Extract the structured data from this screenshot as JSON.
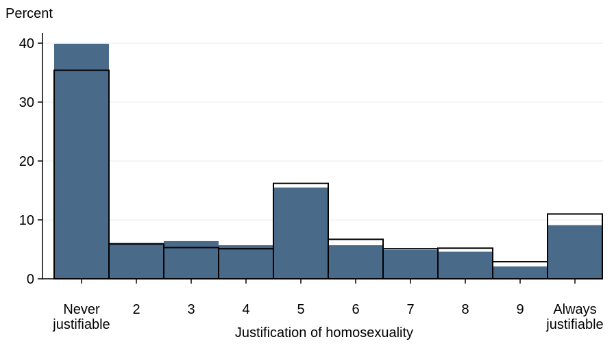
{
  "chart_data": {
    "type": "bar",
    "ylabel": "Percent",
    "xlabel": "Justification of homosexuality",
    "ylim": [
      0,
      40
    ],
    "yticks": [
      0,
      10,
      20,
      30,
      40
    ],
    "grid": true,
    "categories": [
      [
        "Never",
        "justifiable"
      ],
      [
        "2"
      ],
      [
        "3"
      ],
      [
        "4"
      ],
      [
        "5"
      ],
      [
        "6"
      ],
      [
        "7"
      ],
      [
        "8"
      ],
      [
        "9"
      ],
      [
        "Always",
        "justifiable"
      ]
    ],
    "series": [
      {
        "style": "filled",
        "color": "#4a6a8a",
        "values": [
          39.9,
          6.1,
          6.4,
          5.7,
          15.5,
          5.7,
          4.9,
          4.6,
          2.1,
          9.1
        ]
      },
      {
        "style": "outline",
        "color": "#000000",
        "values": [
          35.4,
          5.9,
          5.3,
          5.1,
          16.2,
          6.7,
          5.1,
          5.2,
          2.9,
          11.0
        ]
      }
    ]
  }
}
